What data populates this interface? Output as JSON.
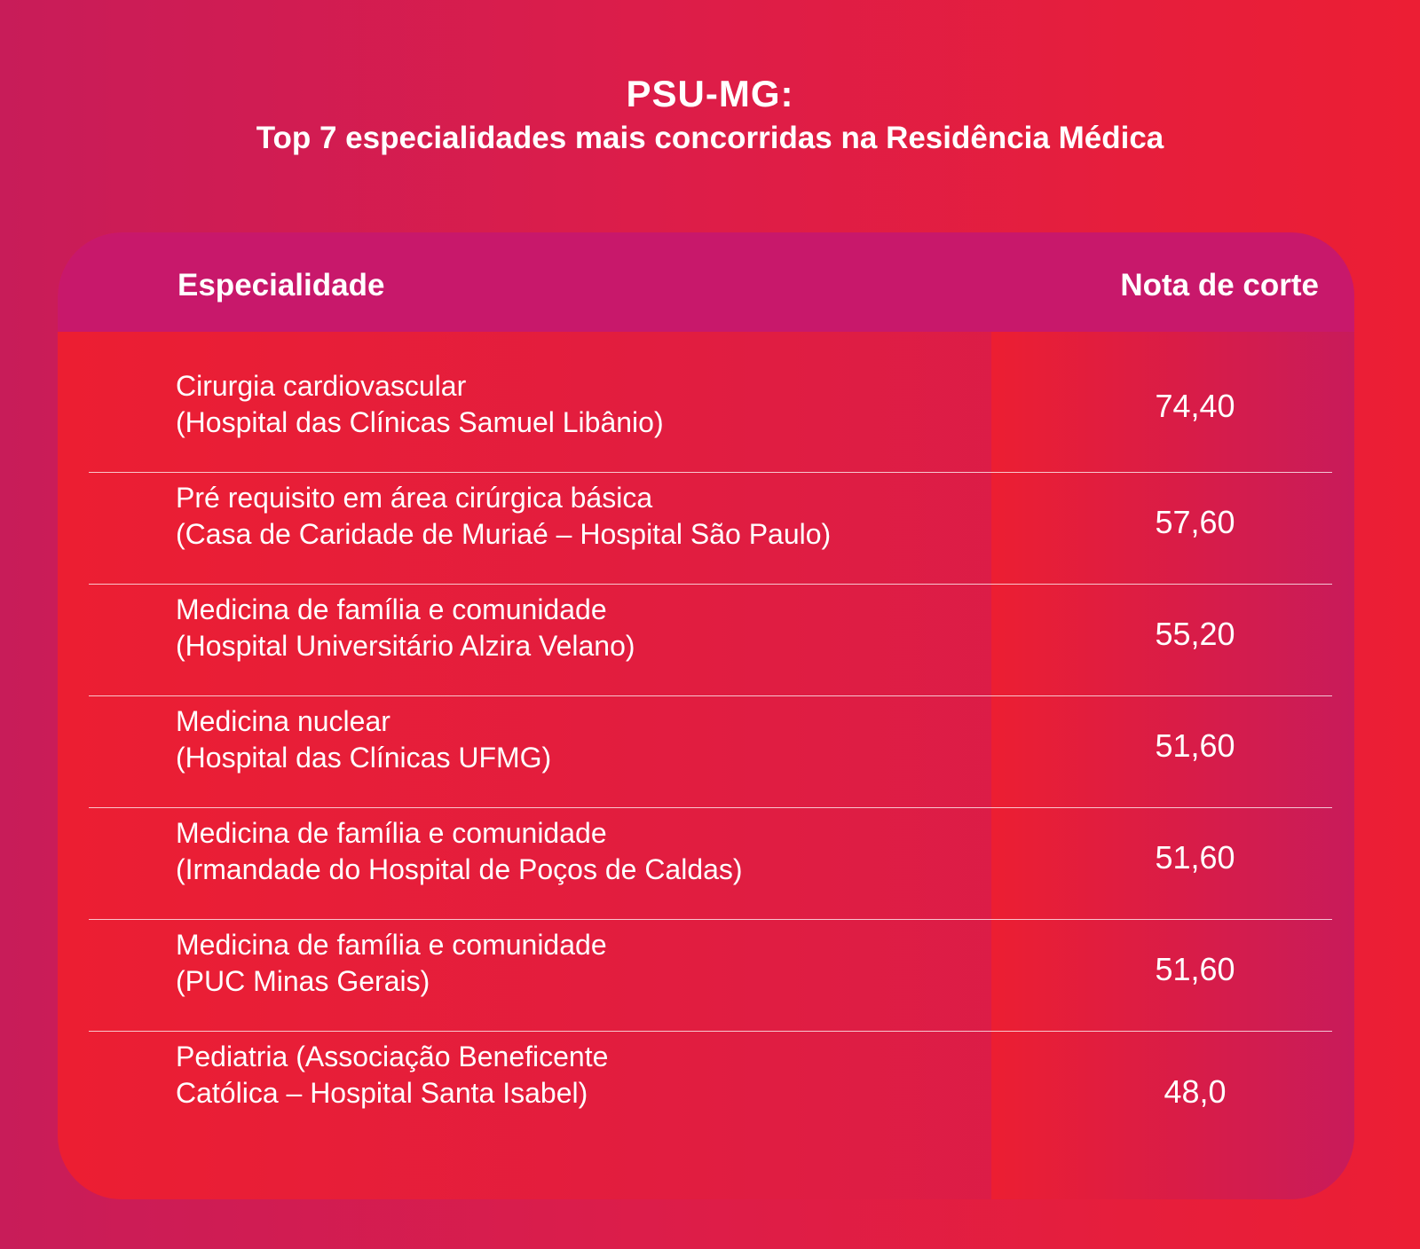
{
  "title": "PSU-MG:",
  "subtitle": "Top 7 especialidades mais concorridas na Residência Médica",
  "colors": {
    "background_left": "#c81c59",
    "background_right": "#ec1e34",
    "header": "#c8186b",
    "text": "#ffffff"
  },
  "chart_data": {
    "type": "table",
    "columns": [
      "Especialidade",
      "Nota de corte"
    ],
    "rows": [
      {
        "name": [
          "Cirurgia cardiovascular",
          "(Hospital das Clínicas Samuel Libânio)"
        ],
        "value": "74,40"
      },
      {
        "name": [
          "Pré requisito em área cirúrgica básica",
          "(Casa de Caridade de Muriaé – Hospital São Paulo)"
        ],
        "value": "57,60"
      },
      {
        "name": [
          "Medicina de família e comunidade",
          "(Hospital Universitário Alzira Velano)"
        ],
        "value": "55,20"
      },
      {
        "name": [
          "Medicina nuclear",
          "(Hospital das Clínicas UFMG)"
        ],
        "value": "51,60"
      },
      {
        "name": [
          "Medicina de família e comunidade",
          "(Irmandade do Hospital de Poços de Caldas)"
        ],
        "value": "51,60"
      },
      {
        "name": [
          "Medicina de família e comunidade",
          "(PUC Minas Gerais)"
        ],
        "value": "51,60"
      },
      {
        "name": [
          "Pediatria (Associação Beneficente",
          "Católica – Hospital Santa Isabel)"
        ],
        "value": "48,0"
      }
    ]
  }
}
